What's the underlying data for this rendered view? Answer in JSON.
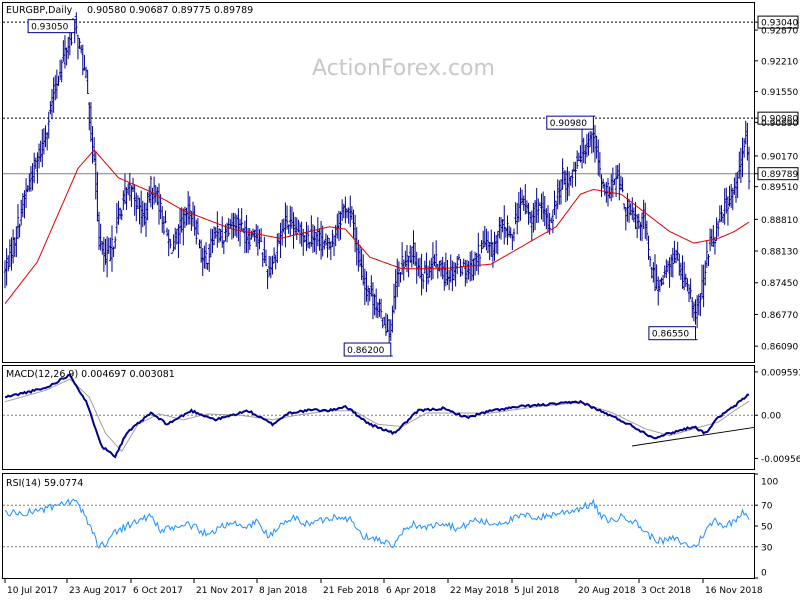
{
  "chart_data": {
    "type": "line",
    "title": "EURGBP,Daily",
    "ohlc_header": "0.90580 0.90687 0.89775 0.89789",
    "watermark": "ActionForex.com",
    "x_labels": [
      "10 Jul 2017",
      "23 Aug 2017",
      "6 Oct 2017",
      "21 Nov 2017",
      "8 Jan 2018",
      "21 Feb 2018",
      "6 Apr 2018",
      "22 May 2018",
      "5 Jul 2018",
      "20 Aug 2018",
      "3 Oct 2018",
      "16 Nov 2018"
    ],
    "price": {
      "ylim": [
        0.8575,
        0.9345
      ],
      "ticks": [
        "0.93040",
        "0.92870",
        "0.92210",
        "0.91550",
        "0.90980",
        "0.90890",
        "0.90170",
        "0.89789",
        "0.89510",
        "0.88810",
        "0.88130",
        "0.87450",
        "0.86770",
        "0.86090"
      ],
      "highlight_ticks": [
        "0.93040",
        "0.90980",
        "0.89789"
      ],
      "hlines": [
        0.9304,
        0.9098,
        0.89789
      ],
      "annotations": [
        {
          "text": "0.93050",
          "value": 0.9305,
          "anchor": "23 Aug 2017"
        },
        {
          "text": "0.90980",
          "value": 0.9098,
          "anchor": "20 Aug 2018"
        },
        {
          "text": "0.86200",
          "value": 0.862,
          "anchor": "6 Apr 2018"
        },
        {
          "text": "0.86550",
          "value": 0.8655,
          "anchor": "16 Nov 2018"
        }
      ],
      "close_anchors": [
        [
          0,
          0.877
        ],
        [
          6,
          0.884
        ],
        [
          12,
          0.893
        ],
        [
          18,
          0.899
        ],
        [
          24,
          0.905
        ],
        [
          30,
          0.915
        ],
        [
          33,
          0.919
        ],
        [
          37,
          0.924
        ],
        [
          40,
          0.9265
        ],
        [
          43,
          0.93
        ],
        [
          46,
          0.925
        ],
        [
          50,
          0.918
        ],
        [
          53,
          0.907
        ],
        [
          56,
          0.895
        ],
        [
          58,
          0.884
        ],
        [
          62,
          0.879
        ],
        [
          66,
          0.882
        ],
        [
          70,
          0.889
        ],
        [
          74,
          0.893
        ],
        [
          78,
          0.895
        ],
        [
          82,
          0.891
        ],
        [
          86,
          0.888
        ],
        [
          90,
          0.895
        ],
        [
          94,
          0.893
        ],
        [
          98,
          0.887
        ],
        [
          102,
          0.882
        ],
        [
          106,
          0.884
        ],
        [
          110,
          0.888
        ],
        [
          114,
          0.89
        ],
        [
          118,
          0.886
        ],
        [
          122,
          0.879
        ],
        [
          126,
          0.881
        ],
        [
          130,
          0.886
        ],
        [
          134,
          0.884
        ],
        [
          138,
          0.887
        ],
        [
          142,
          0.888
        ],
        [
          146,
          0.886
        ],
        [
          150,
          0.884
        ],
        [
          154,
          0.886
        ],
        [
          158,
          0.882
        ],
        [
          162,
          0.877
        ],
        [
          166,
          0.88
        ],
        [
          170,
          0.885
        ],
        [
          174,
          0.888
        ],
        [
          178,
          0.885
        ],
        [
          182,
          0.886
        ],
        [
          186,
          0.884
        ],
        [
          190,
          0.885
        ],
        [
          194,
          0.884
        ],
        [
          198,
          0.882
        ],
        [
          202,
          0.884
        ],
        [
          206,
          0.888
        ],
        [
          210,
          0.891
        ],
        [
          214,
          0.888
        ],
        [
          218,
          0.88
        ],
        [
          222,
          0.874
        ],
        [
          226,
          0.872
        ],
        [
          230,
          0.869
        ],
        [
          234,
          0.866
        ],
        [
          238,
          0.864
        ],
        [
          241,
          0.874
        ],
        [
          244,
          0.878
        ],
        [
          248,
          0.879
        ],
        [
          252,
          0.881
        ],
        [
          256,
          0.877
        ],
        [
          260,
          0.876
        ],
        [
          264,
          0.879
        ],
        [
          268,
          0.878
        ],
        [
          272,
          0.876
        ],
        [
          276,
          0.877
        ],
        [
          280,
          0.879
        ],
        [
          284,
          0.877
        ],
        [
          288,
          0.878
        ],
        [
          292,
          0.881
        ],
        [
          296,
          0.883
        ],
        [
          300,
          0.881
        ],
        [
          304,
          0.885
        ],
        [
          308,
          0.887
        ],
        [
          312,
          0.884
        ],
        [
          316,
          0.89
        ],
        [
          320,
          0.892
        ],
        [
          324,
          0.888
        ],
        [
          328,
          0.891
        ],
        [
          332,
          0.889
        ],
        [
          336,
          0.887
        ],
        [
          340,
          0.892
        ],
        [
          344,
          0.897
        ],
        [
          348,
          0.896
        ],
        [
          352,
          0.9
        ],
        [
          356,
          0.903
        ],
        [
          360,
          0.905
        ],
        [
          363,
          0.907
        ],
        [
          366,
          0.9
        ],
        [
          370,
          0.893
        ],
        [
          374,
          0.895
        ],
        [
          378,
          0.897
        ],
        [
          382,
          0.891
        ],
        [
          386,
          0.889
        ],
        [
          390,
          0.887
        ],
        [
          394,
          0.889
        ],
        [
          398,
          0.878
        ],
        [
          402,
          0.874
        ],
        [
          406,
          0.876
        ],
        [
          410,
          0.878
        ],
        [
          414,
          0.881
        ],
        [
          418,
          0.875
        ],
        [
          422,
          0.872
        ],
        [
          426,
          0.868
        ],
        [
          430,
          0.873
        ],
        [
          434,
          0.882
        ],
        [
          438,
          0.885
        ],
        [
          442,
          0.89
        ],
        [
          446,
          0.892
        ],
        [
          450,
          0.894
        ],
        [
          454,
          0.9
        ],
        [
          457,
          0.906
        ],
        [
          459,
          0.8979
        ]
      ],
      "ma_anchors": [
        [
          0,
          0.87
        ],
        [
          20,
          0.879
        ],
        [
          45,
          0.899
        ],
        [
          55,
          0.903
        ],
        [
          70,
          0.897
        ],
        [
          90,
          0.894
        ],
        [
          110,
          0.89
        ],
        [
          140,
          0.886
        ],
        [
          170,
          0.884
        ],
        [
          200,
          0.8865
        ],
        [
          210,
          0.886
        ],
        [
          225,
          0.88
        ],
        [
          245,
          0.8775
        ],
        [
          270,
          0.8775
        ],
        [
          300,
          0.8785
        ],
        [
          320,
          0.8825
        ],
        [
          340,
          0.8865
        ],
        [
          355,
          0.8935
        ],
        [
          363,
          0.8945
        ],
        [
          380,
          0.8935
        ],
        [
          395,
          0.8895
        ],
        [
          410,
          0.8855
        ],
        [
          425,
          0.883
        ],
        [
          440,
          0.884
        ],
        [
          450,
          0.8855
        ],
        [
          459,
          0.8875
        ]
      ]
    },
    "macd": {
      "label": "MACD(12,26,9) 0.004697 0.003081",
      "ylim": [
        -0.0119,
        0.0109
      ],
      "ticks": [
        "0.009593",
        "0.00",
        "-0.009562"
      ],
      "highlight_ticks": [
        "0.00"
      ],
      "main_anchors": [
        [
          0,
          0.004
        ],
        [
          25,
          0.006
        ],
        [
          40,
          0.009
        ],
        [
          50,
          0.003
        ],
        [
          60,
          -0.007
        ],
        [
          68,
          -0.009
        ],
        [
          75,
          -0.004
        ],
        [
          90,
          0.0005
        ],
        [
          100,
          -0.002
        ],
        [
          115,
          0.001
        ],
        [
          130,
          -0.001
        ],
        [
          150,
          0.001
        ],
        [
          165,
          -0.002
        ],
        [
          175,
          0.0005
        ],
        [
          190,
          0.0012
        ],
        [
          200,
          0.001
        ],
        [
          210,
          0.002
        ],
        [
          225,
          -0.002
        ],
        [
          240,
          -0.004
        ],
        [
          255,
          0.001
        ],
        [
          270,
          0.0015
        ],
        [
          285,
          -0.0005
        ],
        [
          300,
          0.001
        ],
        [
          320,
          0.002
        ],
        [
          340,
          0.0025
        ],
        [
          355,
          0.003
        ],
        [
          370,
          0.0005
        ],
        [
          385,
          -0.002
        ],
        [
          400,
          -0.005
        ],
        [
          410,
          -0.004
        ],
        [
          425,
          -0.0025
        ],
        [
          432,
          -0.004
        ],
        [
          440,
          -0.0005
        ],
        [
          450,
          0.002
        ],
        [
          459,
          0.0047
        ]
      ],
      "signal_anchors": [
        [
          0,
          0.003
        ],
        [
          25,
          0.0055
        ],
        [
          40,
          0.008
        ],
        [
          52,
          0.004
        ],
        [
          62,
          -0.004
        ],
        [
          72,
          -0.008
        ],
        [
          82,
          -0.002
        ],
        [
          95,
          0.0003
        ],
        [
          110,
          -0.001
        ],
        [
          125,
          0.0003
        ],
        [
          145,
          0.0
        ],
        [
          165,
          -0.001
        ],
        [
          180,
          0.0
        ],
        [
          200,
          0.001
        ],
        [
          215,
          0.001
        ],
        [
          230,
          -0.002
        ],
        [
          245,
          -0.0025
        ],
        [
          260,
          0.0005
        ],
        [
          280,
          0.0005
        ],
        [
          300,
          0.0005
        ],
        [
          330,
          0.002
        ],
        [
          355,
          0.0028
        ],
        [
          375,
          0.0005
        ],
        [
          395,
          -0.003
        ],
        [
          410,
          -0.0045
        ],
        [
          425,
          -0.003
        ],
        [
          440,
          -0.0015
        ],
        [
          450,
          0.001
        ],
        [
          459,
          0.0031
        ]
      ],
      "trendline": [
        [
          400,
          -0.0068
        ],
        [
          459,
          -0.0027
        ]
      ]
    },
    "rsi": {
      "label": "RSI(14) 59.0774",
      "ylim": [
        0,
        100
      ],
      "ticks": [
        "100",
        "70",
        "50",
        "30",
        "0"
      ],
      "levels": [
        70,
        30
      ],
      "anchors": [
        [
          0,
          63
        ],
        [
          10,
          62
        ],
        [
          20,
          65
        ],
        [
          30,
          68
        ],
        [
          40,
          73
        ],
        [
          45,
          71
        ],
        [
          52,
          52
        ],
        [
          58,
          30
        ],
        [
          62,
          33
        ],
        [
          68,
          45
        ],
        [
          75,
          50
        ],
        [
          82,
          55
        ],
        [
          90,
          60
        ],
        [
          96,
          45
        ],
        [
          104,
          48
        ],
        [
          112,
          52
        ],
        [
          118,
          48
        ],
        [
          126,
          40
        ],
        [
          132,
          50
        ],
        [
          140,
          53
        ],
        [
          148,
          48
        ],
        [
          156,
          55
        ],
        [
          162,
          40
        ],
        [
          170,
          50
        ],
        [
          178,
          58
        ],
        [
          186,
          52
        ],
        [
          194,
          55
        ],
        [
          200,
          58
        ],
        [
          208,
          60
        ],
        [
          214,
          55
        ],
        [
          220,
          40
        ],
        [
          228,
          38
        ],
        [
          234,
          35
        ],
        [
          240,
          30
        ],
        [
          246,
          45
        ],
        [
          252,
          52
        ],
        [
          260,
          48
        ],
        [
          270,
          54
        ],
        [
          280,
          47
        ],
        [
          290,
          56
        ],
        [
          300,
          52
        ],
        [
          310,
          55
        ],
        [
          320,
          60
        ],
        [
          330,
          58
        ],
        [
          340,
          62
        ],
        [
          350,
          65
        ],
        [
          360,
          70
        ],
        [
          363,
          72
        ],
        [
          368,
          58
        ],
        [
          375,
          55
        ],
        [
          382,
          60
        ],
        [
          390,
          52
        ],
        [
          398,
          40
        ],
        [
          405,
          35
        ],
        [
          413,
          38
        ],
        [
          420,
          32
        ],
        [
          426,
          30
        ],
        [
          432,
          45
        ],
        [
          438,
          56
        ],
        [
          444,
          50
        ],
        [
          450,
          55
        ],
        [
          455,
          65
        ],
        [
          459,
          59
        ]
      ]
    }
  }
}
